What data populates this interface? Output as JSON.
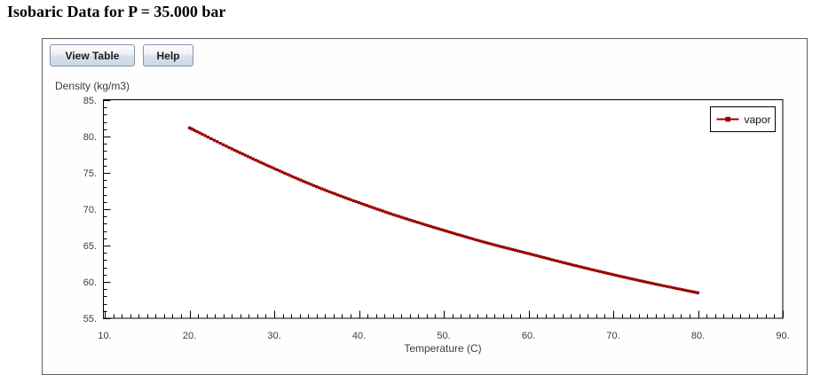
{
  "page": {
    "title": "Isobaric Data for P = 35.000 bar"
  },
  "toolbar": {
    "view_table_label": "View Table",
    "help_label": "Help"
  },
  "chart_data": {
    "type": "line",
    "title": "",
    "xlabel": "Temperature (C)",
    "ylabel": "Density (kg/m3)",
    "xlim": [
      10,
      90
    ],
    "ylim": [
      55,
      85
    ],
    "x_major_tick_step": 10,
    "y_major_tick_step": 5,
    "minor_tick_step": 1,
    "x_tick_labels": [
      "10.",
      "20.",
      "30.",
      "40.",
      "50.",
      "60.",
      "70.",
      "80.",
      "90."
    ],
    "y_tick_labels": [
      "85.",
      "80.",
      "75.",
      "70.",
      "65.",
      "60.",
      "55."
    ],
    "grid": false,
    "legend": {
      "position": "top-right",
      "entries": [
        {
          "label": "vapor",
          "color": "#990000",
          "marker": "square"
        }
      ]
    },
    "series": [
      {
        "name": "vapor",
        "color": "#990000",
        "marker": "square",
        "x": [
          20,
          25,
          30,
          35,
          40,
          45,
          50,
          55,
          60,
          65,
          70,
          75,
          80
        ],
        "y": [
          81.2,
          78.3,
          75.6,
          73.1,
          70.9,
          68.9,
          67.1,
          65.4,
          63.9,
          62.4,
          61.0,
          59.7,
          58.5
        ]
      }
    ]
  },
  "colors": {
    "curve": "#990000",
    "axis": "#000000",
    "tick_text": "#3c3c3c",
    "legend_border": "#000000",
    "panel_border": "#5f5f5f"
  }
}
